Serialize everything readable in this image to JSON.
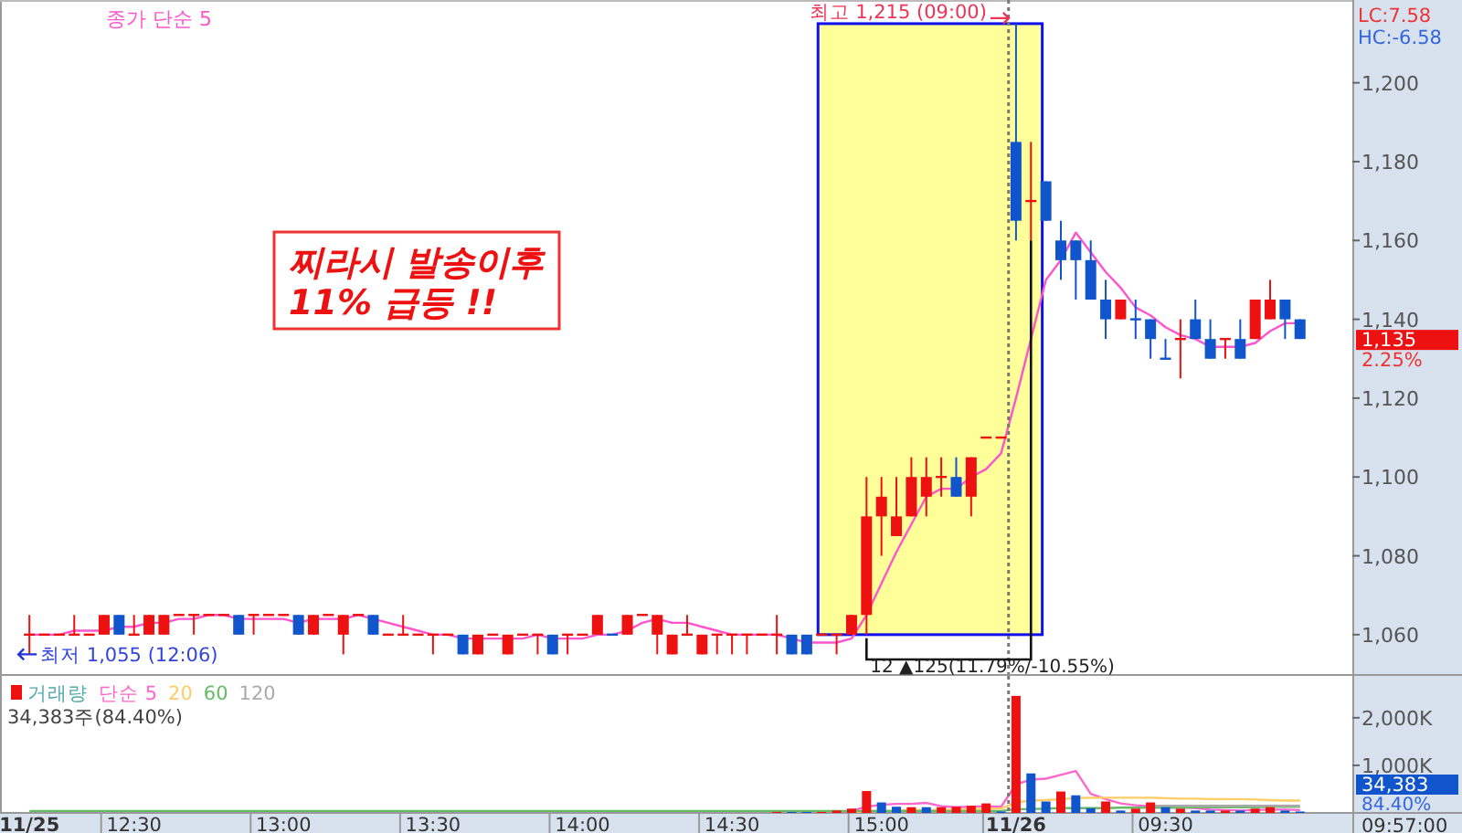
{
  "chart_data": [
    {
      "type": "candlestick",
      "categories": [
        null,
        null,
        null,
        null,
        null,
        null,
        null,
        null,
        null,
        null,
        null,
        null,
        null,
        null,
        null,
        null,
        null,
        null,
        null,
        null,
        null,
        null,
        null,
        null,
        null,
        null,
        null,
        null,
        null,
        null,
        null,
        null,
        null,
        null,
        null,
        null,
        null,
        null,
        null,
        null,
        null,
        null,
        null,
        null,
        null,
        null,
        null,
        null,
        null,
        null,
        null,
        null,
        null,
        null,
        null,
        null,
        null,
        null,
        null,
        null,
        null,
        null,
        null,
        null,
        null,
        null,
        null,
        null,
        null,
        null,
        null,
        null,
        null,
        null,
        null,
        null,
        null,
        null,
        null,
        null,
        null,
        null,
        null,
        null,
        null,
        null,
        null,
        null,
        null
      ],
      "ohlc": [
        [
          1060,
          1065,
          1055,
          1060
        ],
        [
          1060,
          1060,
          1060,
          1060
        ],
        [
          1060,
          1060,
          1060,
          1060
        ],
        [
          1060,
          1065,
          1060,
          1060
        ],
        [
          1060,
          1060,
          1060,
          1060
        ],
        [
          1060,
          1065,
          1060,
          1065
        ],
        [
          1065,
          1065,
          1060,
          1060
        ],
        [
          1060,
          1065,
          1060,
          1060
        ],
        [
          1060,
          1065,
          1060,
          1065
        ],
        [
          1060,
          1065,
          1060,
          1065
        ],
        [
          1065,
          1065,
          1065,
          1065
        ],
        [
          1065,
          1065,
          1060,
          1065
        ],
        [
          1065,
          1065,
          1065,
          1065
        ],
        [
          1065,
          1065,
          1065,
          1065
        ],
        [
          1065,
          1065,
          1060,
          1060
        ],
        [
          1065,
          1065,
          1060,
          1065
        ],
        [
          1065,
          1065,
          1065,
          1065
        ],
        [
          1065,
          1065,
          1065,
          1065
        ],
        [
          1065,
          1065,
          1060,
          1060
        ],
        [
          1060,
          1065,
          1060,
          1065
        ],
        [
          1065,
          1065,
          1065,
          1065
        ],
        [
          1060,
          1065,
          1055,
          1065
        ],
        [
          1065,
          1065,
          1065,
          1065
        ],
        [
          1065,
          1065,
          1060,
          1060
        ],
        [
          1060,
          1060,
          1060,
          1060
        ],
        [
          1060,
          1065,
          1060,
          1060
        ],
        [
          1060,
          1060,
          1060,
          1060
        ],
        [
          1060,
          1060,
          1055,
          1060
        ],
        [
          1060,
          1060,
          1060,
          1060
        ],
        [
          1060,
          1060,
          1055,
          1055
        ],
        [
          1055,
          1060,
          1055,
          1060
        ],
        [
          1060,
          1060,
          1060,
          1060
        ],
        [
          1055,
          1060,
          1055,
          1060
        ],
        [
          1060,
          1060,
          1060,
          1060
        ],
        [
          1060,
          1060,
          1055,
          1060
        ],
        [
          1060,
          1060,
          1055,
          1055
        ],
        [
          1060,
          1060,
          1055,
          1060
        ],
        [
          1060,
          1060,
          1060,
          1060
        ],
        [
          1060,
          1065,
          1060,
          1065
        ],
        [
          1060,
          1060,
          1060,
          1060
        ],
        [
          1060,
          1065,
          1060,
          1065
        ],
        [
          1065,
          1065,
          1065,
          1065
        ],
        [
          1060,
          1065,
          1055,
          1065
        ],
        [
          1055,
          1060,
          1055,
          1060
        ],
        [
          1060,
          1065,
          1060,
          1060
        ],
        [
          1055,
          1060,
          1055,
          1060
        ],
        [
          1060,
          1060,
          1055,
          1060
        ],
        [
          1060,
          1060,
          1055,
          1060
        ],
        [
          1060,
          1060,
          1055,
          1060
        ],
        [
          1060,
          1060,
          1060,
          1060
        ],
        [
          1060,
          1065,
          1055,
          1060
        ],
        [
          1060,
          1060,
          1055,
          1055
        ],
        [
          1060,
          1060,
          1055,
          1055
        ],
        [
          1060,
          1060,
          1060,
          1060
        ],
        [
          1060,
          1060,
          1055,
          1060
        ],
        [
          1060,
          1065,
          1060,
          1065
        ],
        [
          1065,
          1100,
          1060,
          1090
        ],
        [
          1090,
          1100,
          1080,
          1095
        ],
        [
          1085,
          1100,
          1085,
          1090
        ],
        [
          1090,
          1105,
          1090,
          1100
        ],
        [
          1095,
          1105,
          1090,
          1100
        ],
        [
          1100,
          1105,
          1095,
          1100
        ],
        [
          1100,
          1105,
          1095,
          1095
        ],
        [
          1095,
          1105,
          1090,
          1105
        ],
        [
          1110,
          1110,
          1110,
          1110
        ],
        [
          1110,
          1110,
          1110,
          1110
        ],
        [
          1185,
          1215,
          1160,
          1165
        ],
        [
          1170,
          1185,
          1160,
          1170
        ],
        [
          1175,
          1175,
          1165,
          1165
        ],
        [
          1160,
          1165,
          1150,
          1155
        ],
        [
          1160,
          1160,
          1145,
          1155
        ],
        [
          1155,
          1160,
          1145,
          1145
        ],
        [
          1145,
          1150,
          1135,
          1140
        ],
        [
          1140,
          1145,
          1140,
          1145
        ],
        [
          1140,
          1145,
          1135,
          1140
        ],
        [
          1140,
          1140,
          1130,
          1135
        ],
        [
          1130,
          1135,
          1130,
          1130
        ],
        [
          1135,
          1140,
          1125,
          1135
        ],
        [
          1140,
          1145,
          1135,
          1135
        ],
        [
          1135,
          1140,
          1130,
          1130
        ],
        [
          1135,
          1135,
          1130,
          1135
        ],
        [
          1135,
          1140,
          1130,
          1130
        ],
        [
          1135,
          1145,
          1135,
          1145
        ],
        [
          1140,
          1150,
          1140,
          1145
        ],
        [
          1145,
          1145,
          1135,
          1140
        ],
        [
          1140,
          1140,
          1135,
          1135
        ],
        null,
        null,
        null
      ],
      "series": [
        {
          "name": "종가 단순 5",
          "type": "line",
          "color": "#ff55cc",
          "values": [
            1060,
            1060,
            1060,
            1061,
            1061,
            1061,
            1062,
            1062,
            1063,
            1063,
            1064,
            1064,
            1065,
            1065,
            1064,
            1064,
            1064,
            1064,
            1063,
            1064,
            1064,
            1064,
            1065,
            1064,
            1063,
            1062,
            1061,
            1060,
            1060,
            1059,
            1059,
            1059,
            1059,
            1059,
            1060,
            1059,
            1059,
            1059,
            1060,
            1060,
            1061,
            1063,
            1064,
            1063,
            1063,
            1062,
            1061,
            1060,
            1060,
            1060,
            1060,
            1059,
            1058,
            1058,
            1058,
            1059,
            1065,
            1073,
            1081,
            1088,
            1095,
            1097,
            1097,
            1100,
            1102,
            1106,
            1120,
            1135,
            1150,
            1155,
            1162,
            1157,
            1152,
            1148,
            1143,
            1141,
            1138,
            1136,
            1135,
            1133,
            1133,
            1133,
            1134,
            1137,
            1139,
            1139,
            null,
            null,
            null
          ]
        }
      ],
      "ylim": [
        1050,
        1221
      ],
      "yticks": [
        {
          "value": 1060,
          "label": "1,060"
        },
        {
          "value": 1080,
          "label": "1,080"
        },
        {
          "value": 1100,
          "label": "1,100"
        },
        {
          "value": 1120,
          "label": "1,120"
        },
        {
          "value": 1140,
          "label": "1,140"
        },
        {
          "value": 1160,
          "label": "1,160"
        },
        {
          "value": 1180,
          "label": "1,180"
        },
        {
          "value": 1200,
          "label": "1,200"
        }
      ],
      "tick_labels": "y",
      "legend": "top left",
      "bands": [
        {
          "axis": "y",
          "from": 1060,
          "to": 1215,
          "color": "#ffff99"
        }
      ],
      "annotations": [
        "찌라시 발송이후\n11% 급등 !!",
        {
          "text": "최고 1,215 (09:00)",
          "y": 1215
        },
        "최저 1,055 (12:06)",
        {
          "text": "12 ▲125(11.79%/-10.55%)",
          "y": 1060
        },
        "LC:7.58",
        "HC:-6.58",
        "1,135",
        "2.25%"
      ]
    },
    {
      "type": "bar",
      "categories": [
        "11/25",
        null,
        null,
        null,
        null,
        null,
        null,
        "12:30",
        null,
        null,
        null,
        null,
        null,
        null,
        null,
        null,
        null,
        "13:00",
        null,
        null,
        null,
        null,
        null,
        null,
        null,
        null,
        null,
        "13:30",
        null,
        null,
        null,
        null,
        null,
        null,
        null,
        null,
        null,
        "14:00",
        null,
        null,
        null,
        null,
        null,
        null,
        null,
        null,
        null,
        "14:30",
        null,
        null,
        null,
        null,
        null,
        null,
        null,
        null,
        null,
        "15:00",
        null,
        null,
        null,
        null,
        null,
        null,
        null,
        null,
        "11/26",
        null,
        null,
        null,
        null,
        null,
        null,
        null,
        null,
        null,
        "09:30",
        null,
        null,
        null,
        null,
        null,
        null,
        null,
        null,
        null,
        null,
        null,
        null
      ],
      "series": [
        {
          "name": "거래량",
          "color": "#55aaaa",
          "colors": [
            null,
            null,
            null,
            null,
            null,
            null,
            null,
            null,
            null,
            null,
            null,
            null,
            null,
            null,
            null,
            null,
            null,
            null,
            null,
            null,
            null,
            null,
            null,
            null,
            null,
            null,
            null,
            null,
            null,
            null,
            null,
            null,
            null,
            null,
            null,
            null,
            null,
            null,
            null,
            null,
            null,
            null,
            null,
            null,
            null,
            null,
            null,
            null,
            null,
            null,
            "#ee1111",
            "#1155cc",
            "#1155cc",
            "#ee1111",
            "#ee1111",
            "#ee1111",
            "#ee1111",
            "#1155cc",
            "#1155cc",
            "#ee1111",
            "#1155cc",
            "#ee1111",
            "#ee1111",
            "#ee1111",
            "#ee1111",
            "#1155cc",
            "#ee1111",
            "#1155cc",
            "#1155cc",
            "#ee1111",
            "#1155cc",
            "#1155cc",
            "#ee1111",
            "#1155cc",
            "#ee1111",
            "#ee1111",
            "#1155cc",
            "#ee1111",
            "#1155cc",
            "#1155cc",
            "#ee1111",
            "#1155cc",
            "#ee1111",
            "#ee1111",
            "#1155cc",
            "#1155cc",
            null,
            null,
            null
          ],
          "values": [
            null,
            null,
            null,
            null,
            null,
            null,
            null,
            null,
            null,
            null,
            null,
            null,
            null,
            null,
            null,
            null,
            null,
            null,
            null,
            null,
            null,
            null,
            null,
            null,
            null,
            null,
            null,
            null,
            null,
            null,
            null,
            null,
            null,
            null,
            null,
            null,
            null,
            null,
            null,
            null,
            null,
            null,
            null,
            null,
            null,
            null,
            null,
            null,
            null,
            null,
            20,
            20,
            20,
            20,
            50,
            90,
            460,
            220,
            130,
            120,
            120,
            120,
            130,
            150,
            200,
            30,
            2460,
            830,
            240,
            450,
            370,
            100,
            240,
            50,
            90,
            220,
            120,
            90,
            50,
            50,
            50,
            50,
            90,
            120,
            50,
            30,
            null,
            null,
            null
          ]
        },
        {
          "name": "단순 5",
          "type": "line",
          "color": "#ff66cc",
          "values": [
            null,
            null,
            null,
            null,
            null,
            null,
            null,
            null,
            null,
            null,
            null,
            null,
            null,
            null,
            null,
            null,
            null,
            null,
            null,
            null,
            null,
            null,
            null,
            null,
            null,
            null,
            null,
            null,
            null,
            null,
            null,
            null,
            null,
            null,
            null,
            null,
            null,
            null,
            null,
            null,
            null,
            null,
            null,
            null,
            null,
            null,
            null,
            null,
            null,
            null,
            null,
            null,
            null,
            null,
            null,
            40,
            130,
            170,
            190,
            190,
            210,
            140,
            120,
            130,
            140,
            130,
            600,
            700,
            720,
            800,
            880,
            400,
            290,
            200,
            160,
            140,
            130,
            120,
            100,
            70,
            60,
            50,
            60,
            70,
            70,
            60,
            null,
            null,
            null
          ]
        },
        {
          "name": "20",
          "type": "line",
          "color": "#ffcc66",
          "values": [
            null,
            null,
            null,
            null,
            null,
            null,
            null,
            null,
            null,
            null,
            null,
            null,
            null,
            null,
            null,
            null,
            null,
            null,
            null,
            null,
            null,
            null,
            null,
            null,
            null,
            null,
            null,
            null,
            null,
            null,
            null,
            null,
            null,
            null,
            null,
            null,
            null,
            null,
            null,
            null,
            null,
            null,
            null,
            null,
            null,
            null,
            null,
            null,
            null,
            null,
            null,
            null,
            null,
            null,
            null,
            20,
            40,
            40,
            50,
            60,
            60,
            60,
            70,
            80,
            90,
            90,
            220,
            260,
            270,
            290,
            310,
            320,
            320,
            320,
            320,
            320,
            310,
            300,
            300,
            290,
            290,
            290,
            280,
            270,
            260,
            260,
            null,
            null,
            null
          ]
        },
        {
          "name": "60",
          "type": "line",
          "color": "#66bb66",
          "values": [
            40,
            40,
            40,
            40,
            40,
            40,
            40,
            40,
            40,
            40,
            40,
            40,
            40,
            40,
            40,
            40,
            40,
            40,
            40,
            40,
            40,
            40,
            40,
            40,
            40,
            40,
            40,
            40,
            40,
            40,
            40,
            40,
            40,
            40,
            40,
            40,
            40,
            40,
            40,
            40,
            40,
            40,
            40,
            40,
            40,
            40,
            40,
            40,
            40,
            40,
            40,
            40,
            40,
            40,
            40,
            40,
            40,
            40,
            40,
            40,
            40,
            40,
            40,
            40,
            40,
            40,
            80,
            80,
            90,
            100,
            100,
            100,
            100,
            110,
            110,
            110,
            110,
            110,
            120,
            120,
            120,
            120,
            120,
            130,
            130,
            130,
            null,
            null,
            null
          ]
        },
        {
          "name": "120",
          "type": "line",
          "color": "#aaaaaa",
          "values": [
            null,
            null,
            null,
            null,
            null,
            null,
            null,
            null,
            null,
            null,
            null,
            null,
            null,
            null,
            null,
            null,
            null,
            null,
            null,
            null,
            null,
            null,
            null,
            null,
            null,
            null,
            null,
            null,
            null,
            null,
            null,
            null,
            null,
            null,
            null,
            null,
            null,
            null,
            null,
            null,
            null,
            null,
            null,
            null,
            null,
            null,
            null,
            null,
            null,
            null,
            null,
            null,
            null,
            null,
            null,
            null,
            null,
            null,
            null,
            null,
            null,
            null,
            null,
            null,
            null,
            null,
            null,
            null,
            null,
            null,
            null,
            null,
            null,
            null,
            null,
            150,
            150,
            150,
            150,
            150,
            150,
            150,
            150,
            150,
            150,
            150,
            null,
            null,
            null
          ]
        }
      ],
      "ylim": [
        0,
        2880
      ],
      "yticks": [
        {
          "value": 1000,
          "label": "1,000K"
        },
        {
          "value": 2000,
          "label": "2,000K"
        }
      ],
      "legend": "top left",
      "annotations": [
        "34,383주(84.40%)",
        "34,383",
        "84.40%",
        "09:57:00"
      ]
    }
  ]
}
